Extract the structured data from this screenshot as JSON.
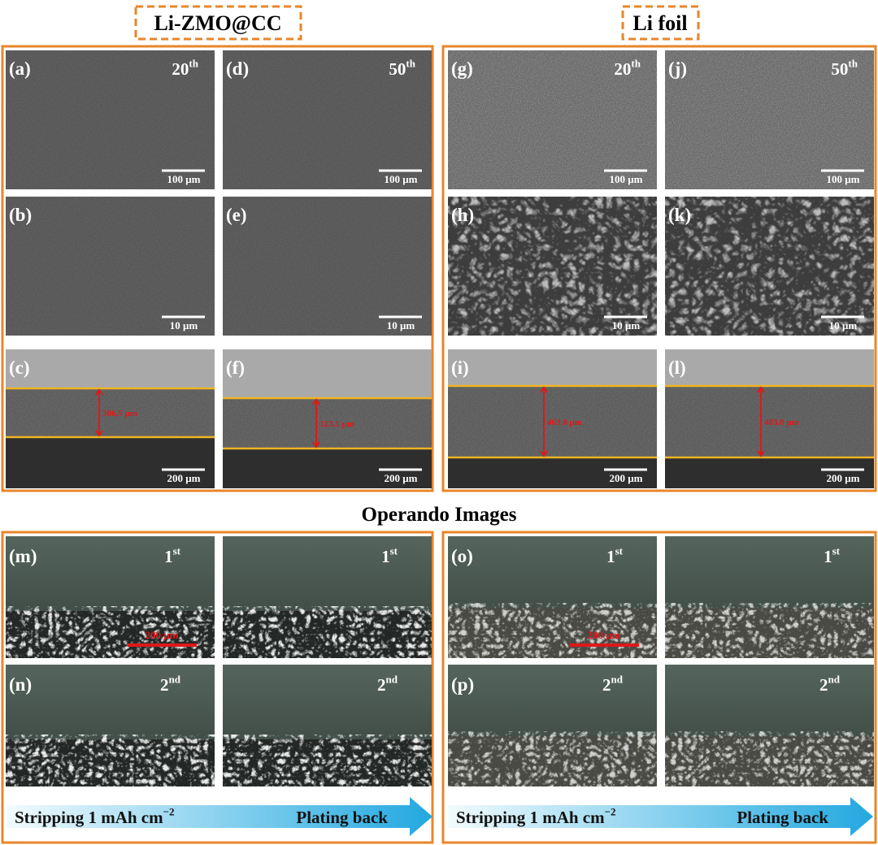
{
  "header": {
    "left_title": "Li-ZMO@CC",
    "right_title": "Li foil"
  },
  "sem": {
    "columns": [
      {
        "cycle": "20",
        "cycle_sup": "th",
        "panels": [
          {
            "label": "(a)",
            "scale": "100 μm"
          },
          {
            "label": "(b)",
            "scale": "10 μm"
          },
          {
            "label": "(c)",
            "scale": "200 μm",
            "thickness": "306.5 μm"
          }
        ]
      },
      {
        "cycle": "50",
        "cycle_sup": "th",
        "panels": [
          {
            "label": "(d)",
            "scale": "100 μm"
          },
          {
            "label": "(e)",
            "scale": "10 μm"
          },
          {
            "label": "(f)",
            "scale": "200 μm",
            "thickness": "123.1 μm"
          }
        ]
      },
      {
        "cycle": "20",
        "cycle_sup": "th",
        "panels": [
          {
            "label": "(g)",
            "scale": "100 μm"
          },
          {
            "label": "(h)",
            "scale": "10 μm"
          },
          {
            "label": "(i)",
            "scale": "200 μm",
            "thickness": "463.0 μm"
          }
        ]
      },
      {
        "cycle": "50",
        "cycle_sup": "th",
        "panels": [
          {
            "label": "(j)",
            "scale": "100 μm"
          },
          {
            "label": "(k)",
            "scale": "10 μm"
          },
          {
            "label": "(l)",
            "scale": "200 μm",
            "thickness": "483.0 μm"
          }
        ]
      }
    ]
  },
  "operando": {
    "title": "Operando Images",
    "groups": [
      {
        "panels": [
          {
            "label": "(m)",
            "cycle": "1",
            "cycle_sup": "st",
            "scale": "200 μm"
          },
          {
            "cycle": "1",
            "cycle_sup": "st"
          },
          {
            "label": "(n)",
            "cycle": "2",
            "cycle_sup": "nd"
          },
          {
            "cycle": "2",
            "cycle_sup": "nd"
          }
        ],
        "arrow": {
          "left": "Stripping 1 mAh cm",
          "left_sup": "−2",
          "right": "Plating back"
        }
      },
      {
        "panels": [
          {
            "label": "(o)",
            "cycle": "1",
            "cycle_sup": "st",
            "scale": "200 μm"
          },
          {
            "cycle": "1",
            "cycle_sup": "st"
          },
          {
            "label": "(p)",
            "cycle": "2",
            "cycle_sup": "nd"
          },
          {
            "cycle": "2",
            "cycle_sup": "nd"
          }
        ],
        "arrow": {
          "left": "Stripping 1 mAh cm",
          "left_sup": "−2",
          "right": "Plating back"
        }
      }
    ]
  }
}
